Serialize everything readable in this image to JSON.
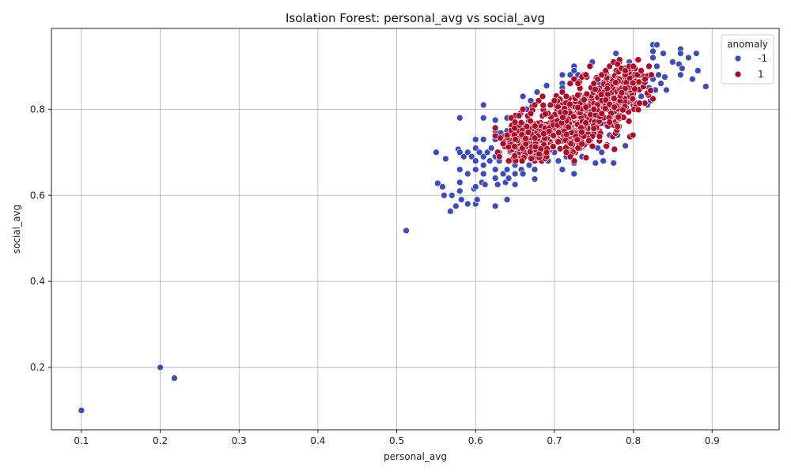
{
  "chart_data": {
    "type": "scatter",
    "title": "Isolation Forest: personal_avg vs social_avg",
    "xlabel": "personal_avg",
    "ylabel": "social_avg",
    "xlim": [
      0.062,
      0.985
    ],
    "ylim": [
      0.055,
      0.988
    ],
    "x_ticks": [
      0.1,
      0.2,
      0.3,
      0.4,
      0.5,
      0.6,
      0.7,
      0.8,
      0.9
    ],
    "y_ticks": [
      0.2,
      0.4,
      0.6,
      0.8
    ],
    "grid": true,
    "legend": {
      "title": "anomaly",
      "placement": "top-right"
    },
    "series": [
      {
        "name": "-1",
        "color": "#3b4cc0",
        "points": [
          [
            0.1,
            0.1
          ],
          [
            0.2,
            0.2
          ],
          [
            0.218,
            0.175
          ],
          [
            0.512,
            0.518
          ],
          [
            0.55,
            0.7
          ],
          [
            0.552,
            0.628
          ],
          [
            0.558,
            0.62
          ],
          [
            0.56,
            0.6
          ],
          [
            0.562,
            0.685
          ],
          [
            0.568,
            0.563
          ],
          [
            0.57,
            0.6
          ],
          [
            0.575,
            0.575
          ],
          [
            0.578,
            0.707
          ],
          [
            0.58,
            0.78
          ],
          [
            0.58,
            0.7
          ],
          [
            0.58,
            0.66
          ],
          [
            0.58,
            0.63
          ],
          [
            0.58,
            0.61
          ],
          [
            0.582,
            0.59
          ],
          [
            0.585,
            0.69
          ],
          [
            0.59,
            0.7
          ],
          [
            0.59,
            0.65
          ],
          [
            0.59,
            0.58
          ],
          [
            0.595,
            0.69
          ],
          [
            0.598,
            0.615
          ],
          [
            0.6,
            0.73
          ],
          [
            0.6,
            0.71
          ],
          [
            0.6,
            0.68
          ],
          [
            0.6,
            0.66
          ],
          [
            0.6,
            0.62
          ],
          [
            0.6,
            0.58
          ],
          [
            0.602,
            0.59
          ],
          [
            0.605,
            0.7
          ],
          [
            0.608,
            0.63
          ],
          [
            0.61,
            0.81
          ],
          [
            0.61,
            0.78
          ],
          [
            0.61,
            0.73
          ],
          [
            0.61,
            0.69
          ],
          [
            0.61,
            0.67
          ],
          [
            0.61,
            0.65
          ],
          [
            0.612,
            0.625
          ],
          [
            0.615,
            0.7
          ],
          [
            0.618,
            0.68
          ],
          [
            0.62,
            0.71
          ],
          [
            0.625,
            0.775
          ],
          [
            0.625,
            0.75
          ],
          [
            0.625,
            0.73
          ],
          [
            0.625,
            0.69
          ],
          [
            0.625,
            0.66
          ],
          [
            0.625,
            0.64
          ],
          [
            0.625,
            0.575
          ],
          [
            0.628,
            0.625
          ],
          [
            0.63,
            0.7
          ],
          [
            0.63,
            0.68
          ],
          [
            0.632,
            0.745
          ],
          [
            0.635,
            0.65
          ],
          [
            0.638,
            0.63
          ],
          [
            0.64,
            0.78
          ],
          [
            0.64,
            0.75
          ],
          [
            0.64,
            0.66
          ],
          [
            0.64,
            0.59
          ],
          [
            0.642,
            0.64
          ],
          [
            0.645,
            0.76
          ],
          [
            0.648,
            0.68
          ],
          [
            0.65,
            0.7
          ],
          [
            0.65,
            0.67
          ],
          [
            0.65,
            0.65
          ],
          [
            0.65,
            0.625
          ],
          [
            0.655,
            0.72
          ],
          [
            0.658,
            0.66
          ],
          [
            0.66,
            0.83
          ],
          [
            0.66,
            0.65
          ],
          [
            0.665,
            0.8
          ],
          [
            0.668,
            0.67
          ],
          [
            0.67,
            0.82
          ],
          [
            0.672,
            0.69
          ],
          [
            0.675,
            0.66
          ],
          [
            0.675,
            0.638
          ],
          [
            0.678,
            0.84
          ],
          [
            0.68,
            0.71
          ],
          [
            0.69,
            0.855
          ],
          [
            0.692,
            0.68
          ],
          [
            0.7,
            0.7
          ],
          [
            0.705,
            0.68
          ],
          [
            0.71,
            0.88
          ],
          [
            0.71,
            0.86
          ],
          [
            0.71,
            0.85
          ],
          [
            0.71,
            0.66
          ],
          [
            0.715,
            0.69
          ],
          [
            0.72,
            0.88
          ],
          [
            0.72,
            0.7
          ],
          [
            0.725,
            0.9
          ],
          [
            0.725,
            0.89
          ],
          [
            0.725,
            0.65
          ],
          [
            0.725,
            0.675
          ],
          [
            0.73,
            0.88
          ],
          [
            0.735,
            0.69
          ],
          [
            0.74,
            0.8
          ],
          [
            0.745,
            0.73
          ],
          [
            0.748,
            0.91
          ],
          [
            0.75,
            0.75
          ],
          [
            0.752,
            0.675
          ],
          [
            0.755,
            0.71
          ],
          [
            0.758,
            0.86
          ],
          [
            0.76,
            0.7
          ],
          [
            0.762,
            0.68
          ],
          [
            0.765,
            0.765
          ],
          [
            0.77,
            0.74
          ],
          [
            0.772,
            0.77
          ],
          [
            0.775,
            0.675
          ],
          [
            0.778,
            0.93
          ],
          [
            0.78,
            0.74
          ],
          [
            0.782,
            0.76
          ],
          [
            0.79,
            0.715
          ],
          [
            0.795,
            0.91
          ],
          [
            0.8,
            0.86
          ],
          [
            0.8,
            0.81
          ],
          [
            0.805,
            0.8
          ],
          [
            0.81,
            0.83
          ],
          [
            0.815,
            0.87
          ],
          [
            0.818,
            0.81
          ],
          [
            0.82,
            0.85
          ],
          [
            0.822,
            0.82
          ],
          [
            0.825,
            0.95
          ],
          [
            0.825,
            0.935
          ],
          [
            0.825,
            0.92
          ],
          [
            0.825,
            0.87
          ],
          [
            0.828,
            0.845
          ],
          [
            0.83,
            0.95
          ],
          [
            0.83,
            0.9
          ],
          [
            0.832,
            0.88
          ],
          [
            0.835,
            0.86
          ],
          [
            0.838,
            0.93
          ],
          [
            0.84,
            0.875
          ],
          [
            0.842,
            0.845
          ],
          [
            0.85,
            0.91
          ],
          [
            0.858,
            0.905
          ],
          [
            0.86,
            0.94
          ],
          [
            0.86,
            0.93
          ],
          [
            0.86,
            0.88
          ],
          [
            0.862,
            0.895
          ],
          [
            0.87,
            0.92
          ],
          [
            0.875,
            0.87
          ],
          [
            0.88,
            0.93
          ],
          [
            0.882,
            0.89
          ],
          [
            0.892,
            0.853
          ]
        ]
      },
      {
        "name": "1",
        "color": "#b40426",
        "clusters": [
          {
            "center": [
              0.67,
              0.725
            ],
            "spread": [
              0.018,
              0.028
            ],
            "count": 180
          },
          {
            "center": [
              0.705,
              0.755
            ],
            "spread": [
              0.022,
              0.03
            ],
            "count": 220
          },
          {
            "center": [
              0.74,
              0.77
            ],
            "spread": [
              0.02,
              0.03
            ],
            "count": 170
          },
          {
            "center": [
              0.775,
              0.83
            ],
            "spread": [
              0.018,
              0.03
            ],
            "count": 170
          },
          {
            "center": [
              0.795,
              0.86
            ],
            "spread": [
              0.012,
              0.025
            ],
            "count": 60
          }
        ],
        "bounds": {
          "x": [
            0.625,
            0.825
          ],
          "y": [
            0.68,
            0.915
          ]
        },
        "points": [
          [
            0.628,
            0.7
          ],
          [
            0.63,
            0.69
          ],
          [
            0.635,
            0.72
          ],
          [
            0.64,
            0.74
          ],
          [
            0.645,
            0.78
          ],
          [
            0.65,
            0.77
          ],
          [
            0.655,
            0.785
          ],
          [
            0.66,
            0.8
          ],
          [
            0.665,
            0.76
          ],
          [
            0.67,
            0.79
          ],
          [
            0.675,
            0.81
          ],
          [
            0.68,
            0.82
          ],
          [
            0.685,
            0.83
          ],
          [
            0.69,
            0.69
          ],
          [
            0.695,
            0.81
          ],
          [
            0.7,
            0.82
          ],
          [
            0.71,
            0.84
          ],
          [
            0.715,
            0.83
          ],
          [
            0.72,
            0.86
          ],
          [
            0.725,
            0.87
          ],
          [
            0.73,
            0.86
          ],
          [
            0.735,
            0.875
          ],
          [
            0.74,
            0.88
          ],
          [
            0.745,
            0.9
          ],
          [
            0.75,
            0.86
          ],
          [
            0.755,
            0.87
          ],
          [
            0.76,
            0.88
          ],
          [
            0.765,
            0.89
          ],
          [
            0.77,
            0.9
          ],
          [
            0.775,
            0.91
          ],
          [
            0.78,
            0.905
          ],
          [
            0.785,
            0.895
          ],
          [
            0.79,
            0.89
          ],
          [
            0.795,
            0.9
          ],
          [
            0.8,
            0.9
          ],
          [
            0.805,
            0.88
          ],
          [
            0.81,
            0.89
          ],
          [
            0.815,
            0.87
          ],
          [
            0.82,
            0.9
          ],
          [
            0.823,
            0.88
          ],
          [
            0.78,
            0.76
          ],
          [
            0.77,
            0.77
          ],
          [
            0.76,
            0.79
          ],
          [
            0.75,
            0.8
          ],
          [
            0.72,
            0.69
          ],
          [
            0.715,
            0.7
          ],
          [
            0.73,
            0.71
          ],
          [
            0.69,
            0.7
          ]
        ]
      }
    ]
  }
}
